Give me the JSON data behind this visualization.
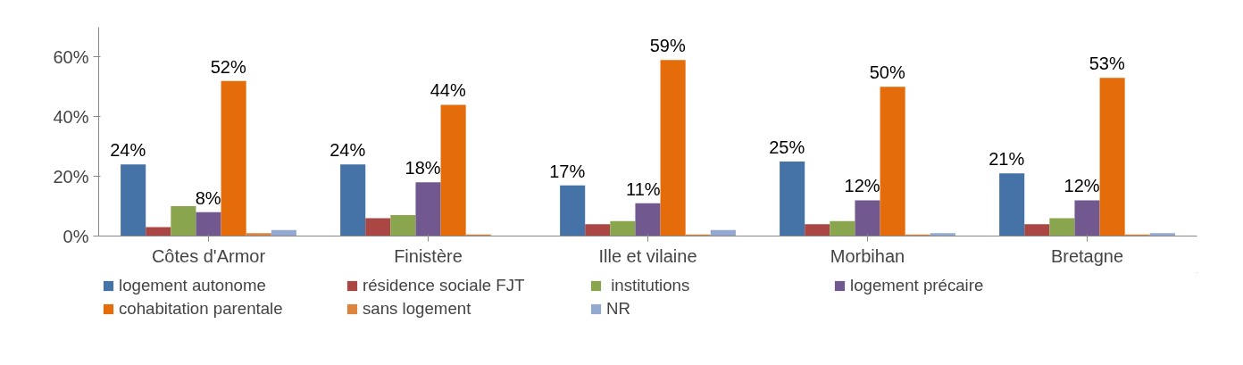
{
  "chart_data": {
    "type": "bar",
    "categories": [
      "Côtes d'Armor",
      "Finistère",
      "Ille et vilaine",
      "Morbihan",
      "Bretagne"
    ],
    "series": [
      {
        "name": "logement autonome",
        "color": "#4572a7",
        "values": [
          24,
          24,
          17,
          25,
          21
        ],
        "value_labels": [
          "24%",
          "24%",
          "17%",
          "25%",
          "21%"
        ]
      },
      {
        "name": "résidence sociale FJT",
        "color": "#aa4643",
        "values": [
          3,
          6,
          4,
          4,
          4
        ]
      },
      {
        "name": " institutions",
        "color": "#89a54e",
        "values": [
          10,
          7,
          5,
          5,
          6
        ]
      },
      {
        "name": "logement précaire",
        "color": "#71588f",
        "values": [
          8,
          18,
          11,
          12,
          12
        ],
        "value_labels": [
          "8%",
          "18%",
          "11%",
          "12%",
          "12%"
        ]
      },
      {
        "name": "cohabitation parentale",
        "color": "#e46c0a",
        "values": [
          52,
          44,
          59,
          50,
          53
        ],
        "value_labels": [
          "52%",
          "44%",
          "59%",
          "50%",
          "53%"
        ]
      },
      {
        "name": "sans logement",
        "color": "#db843d",
        "values": [
          1,
          0.5,
          0.5,
          0.5,
          0.5
        ]
      },
      {
        "name": "NR",
        "color": "#93a9cf",
        "values": [
          2,
          0,
          2,
          1,
          1
        ]
      }
    ],
    "ylim": [
      0,
      70
    ],
    "yticks": [
      {
        "value": 0,
        "label": "0%"
      },
      {
        "value": 20,
        "label": "20%"
      },
      {
        "value": 40,
        "label": "40%"
      },
      {
        "value": 60,
        "label": "60%"
      }
    ],
    "grid": false,
    "legend": "bottom"
  }
}
